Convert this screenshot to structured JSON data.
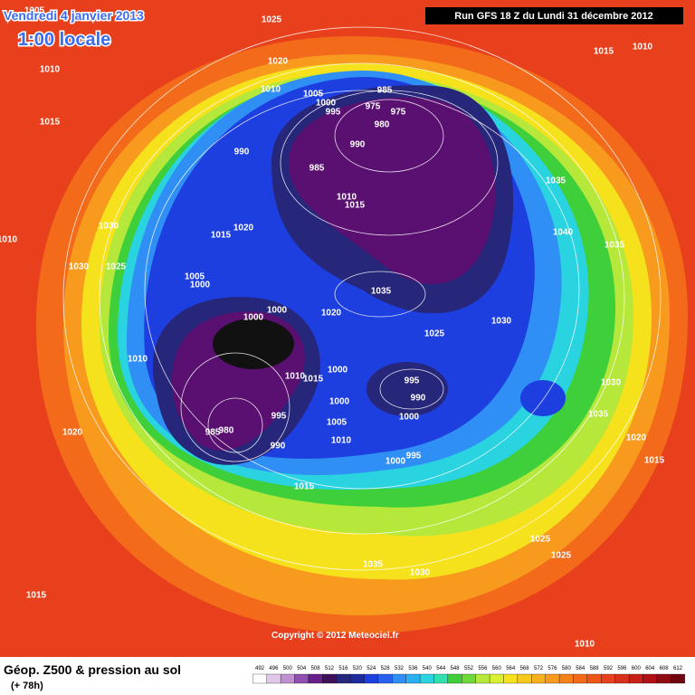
{
  "header": {
    "date": "Vendredi 4 janvier 2013",
    "time": "1:00 locale",
    "run": "Run GFS 18 Z du Lundi 31 décembre 2012"
  },
  "map": {
    "isobar_labels": [
      "1005",
      "1025",
      "1020",
      "1010",
      "1015",
      "1010",
      "1005",
      "1000",
      "995",
      "985",
      "975",
      "975",
      "980",
      "990",
      "990",
      "985",
      "1010",
      "1015",
      "1020",
      "1015",
      "1030",
      "1030",
      "1025",
      "1005",
      "1000",
      "1000",
      "1000",
      "1035",
      "1020",
      "1025",
      "1030",
      "1010",
      "1010",
      "1015",
      "1000",
      "995",
      "990",
      "1000",
      "1000",
      "995",
      "1005",
      "985",
      "980",
      "990",
      "1010",
      "995",
      "1000",
      "1015",
      "1020",
      "1015",
      "1035",
      "1030",
      "1025",
      "1025",
      "1010",
      "1010",
      "1015",
      "1035",
      "1040",
      "1035",
      "1030",
      "1035",
      "1020",
      "1015",
      "1010"
    ],
    "copyright": "Copyright © 2012 Meteociel.fr"
  },
  "footer": {
    "title": "Géop. Z500 & pression au sol",
    "lead": "(+ 78h)",
    "scale": [
      "492",
      "496",
      "500",
      "504",
      "508",
      "512",
      "516",
      "520",
      "524",
      "528",
      "532",
      "536",
      "540",
      "544",
      "548",
      "552",
      "556",
      "560",
      "564",
      "568",
      "572",
      "576",
      "580",
      "584",
      "588",
      "592",
      "596",
      "600",
      "604",
      "608",
      "612"
    ]
  }
}
